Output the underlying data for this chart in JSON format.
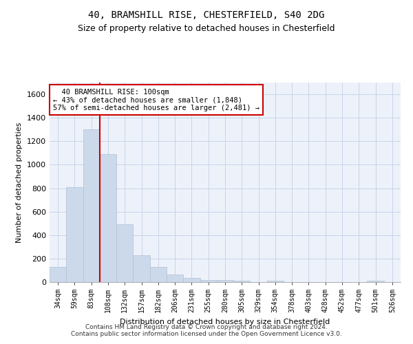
{
  "title_line1": "40, BRAMSHILL RISE, CHESTERFIELD, S40 2DG",
  "title_line2": "Size of property relative to detached houses in Chesterfield",
  "xlabel": "Distribution of detached houses by size in Chesterfield",
  "ylabel": "Number of detached properties",
  "categories": [
    "34sqm",
    "59sqm",
    "83sqm",
    "108sqm",
    "132sqm",
    "157sqm",
    "182sqm",
    "206sqm",
    "231sqm",
    "255sqm",
    "280sqm",
    "305sqm",
    "329sqm",
    "354sqm",
    "378sqm",
    "403sqm",
    "428sqm",
    "452sqm",
    "477sqm",
    "501sqm",
    "526sqm"
  ],
  "values": [
    130,
    810,
    1300,
    1090,
    490,
    230,
    130,
    65,
    35,
    20,
    15,
    10,
    0,
    10,
    0,
    0,
    0,
    0,
    0,
    10,
    0
  ],
  "bar_color": "#ccd9ea",
  "bar_edgecolor": "#afc0d5",
  "vline_x_index": 2.5,
  "ylim": [
    0,
    1700
  ],
  "yticks": [
    0,
    200,
    400,
    600,
    800,
    1000,
    1200,
    1400,
    1600
  ],
  "annotation_line1": "  40 BRAMSHILL RISE: 100sqm",
  "annotation_line2": "← 43% of detached houses are smaller (1,848)",
  "annotation_line3": "57% of semi-detached houses are larger (2,481) →",
  "annotation_box_facecolor": "#ffffff",
  "annotation_box_edgecolor": "#cc0000",
  "vline_color": "#cc0000",
  "footer_line1": "Contains HM Land Registry data © Crown copyright and database right 2024.",
  "footer_line2": "Contains public sector information licensed under the Open Government Licence v3.0.",
  "grid_color": "#c8d4e8",
  "background_color": "#edf2fa",
  "title1_fontsize": 10,
  "title2_fontsize": 9,
  "ylabel_fontsize": 8,
  "xlabel_fontsize": 8,
  "ytick_fontsize": 8,
  "xtick_fontsize": 7,
  "annotation_fontsize": 7.5,
  "footer_fontsize": 6.5
}
